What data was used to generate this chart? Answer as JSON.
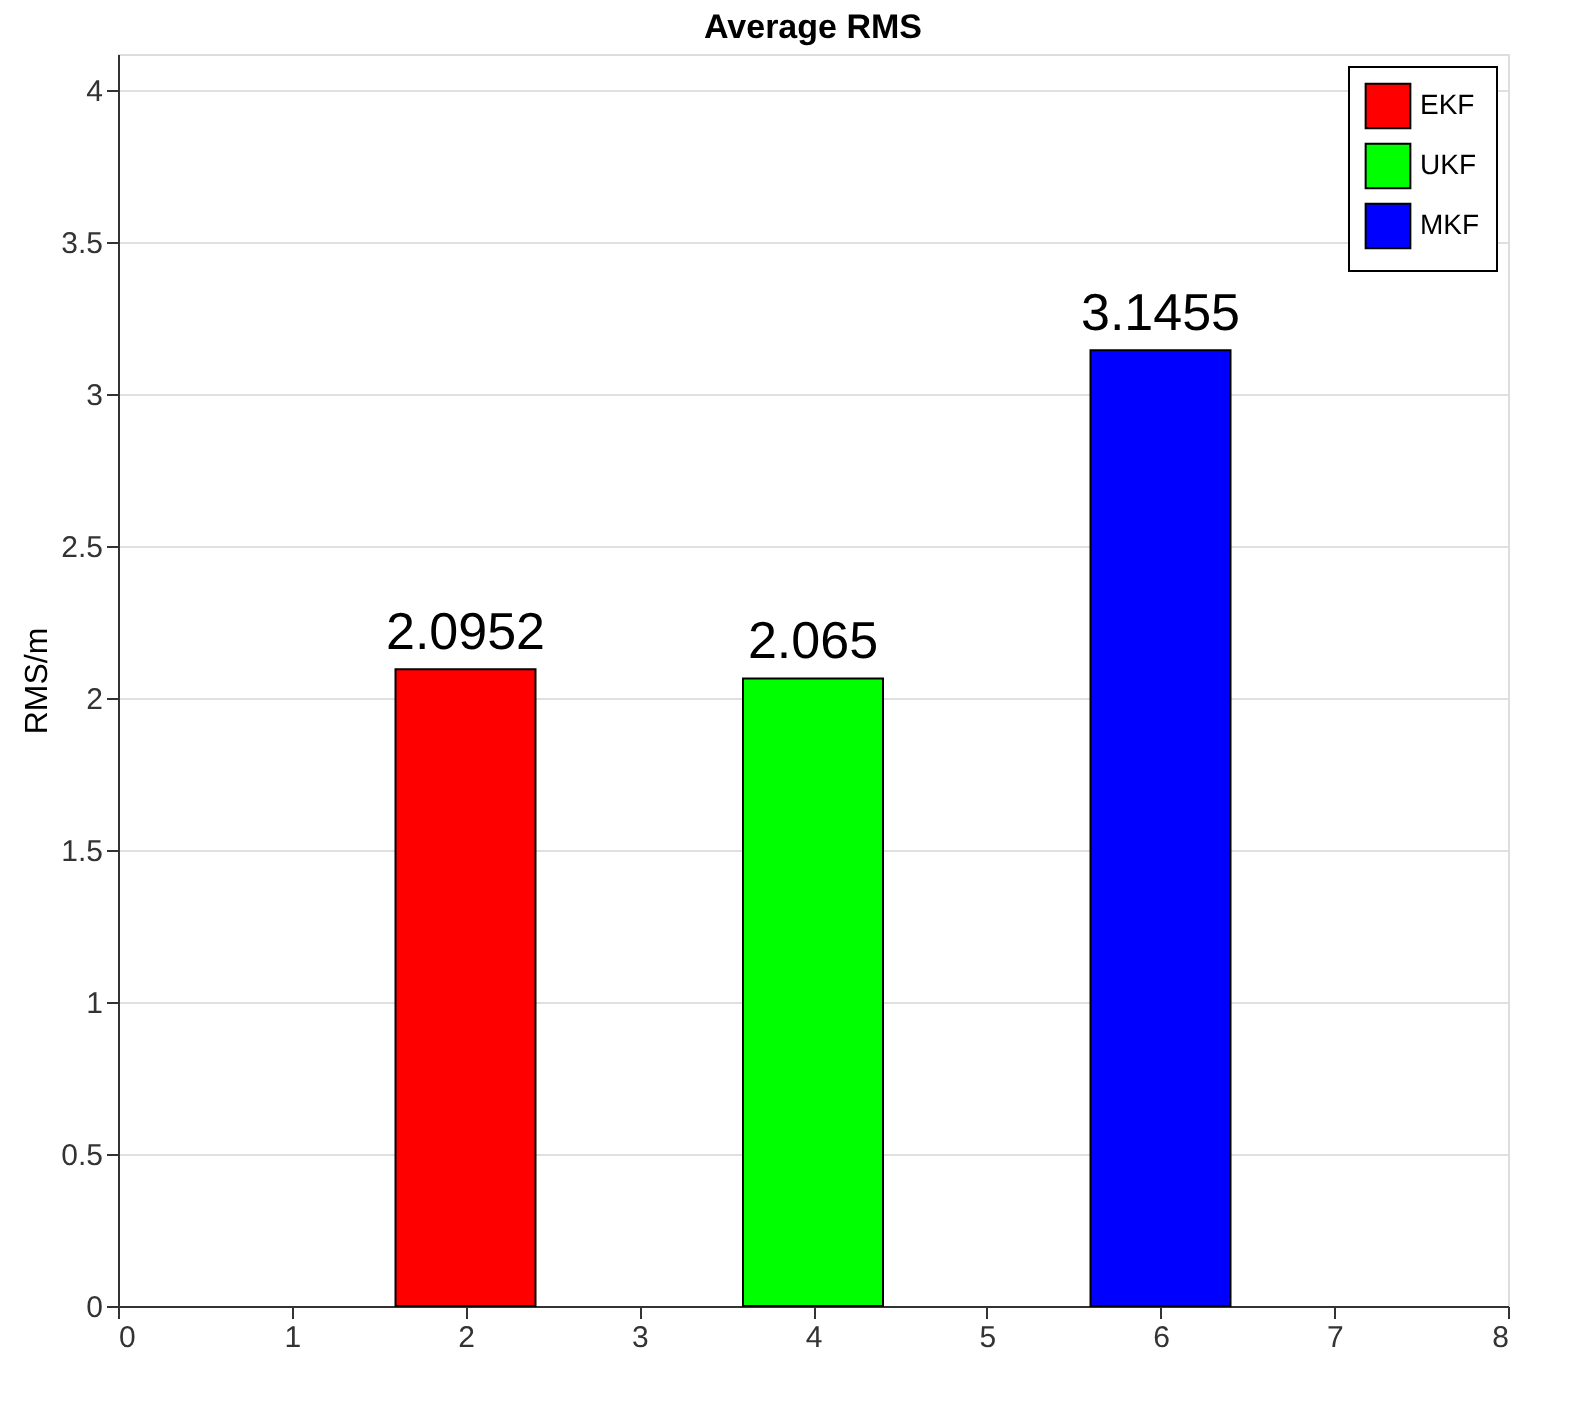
{
  "chart_data": {
    "type": "bar",
    "title": "Average RMS",
    "ylabel": "RMS/m",
    "series": [
      {
        "name": "EKF",
        "color": "#ff0000",
        "x": [
          2
        ],
        "values": [
          2.0952
        ]
      },
      {
        "name": "UKF",
        "color": "#00ff00",
        "x": [
          4
        ],
        "values": [
          2.065
        ]
      },
      {
        "name": "MKF",
        "color": "#0000ff",
        "x": [
          6
        ],
        "values": [
          3.1455
        ]
      }
    ],
    "xlim": [
      0,
      8
    ],
    "xticks": [
      0,
      1,
      2,
      3,
      4,
      5,
      6,
      7,
      8
    ],
    "ylim": [
      0,
      4.12
    ],
    "yticks": [
      0,
      0.5,
      1,
      1.5,
      2,
      2.5,
      3,
      3.5,
      4
    ],
    "grid": "y",
    "legend": "top right",
    "data_labels": true
  }
}
